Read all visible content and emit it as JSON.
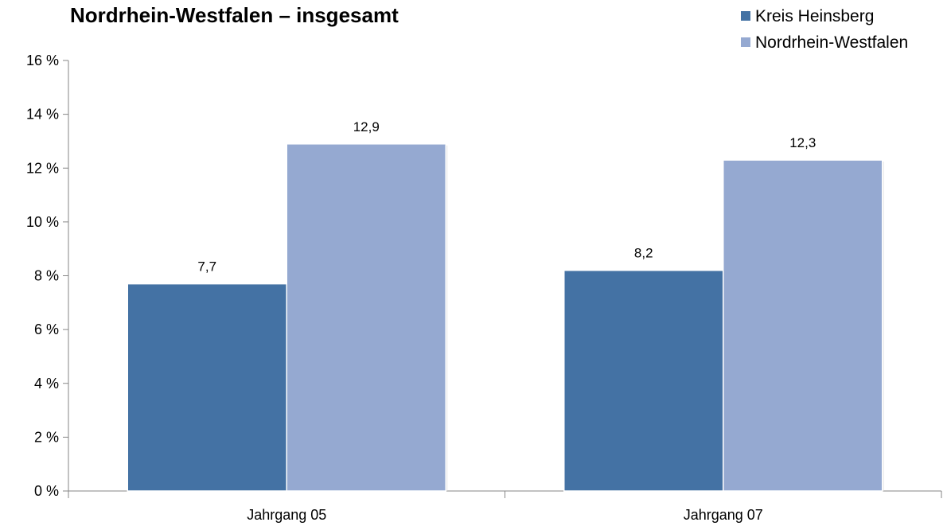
{
  "chart_data": {
    "type": "bar",
    "title": "Nordrhein-Westfalen – insgesamt",
    "categories": [
      "Jahrgang 05",
      "Jahrgang 07"
    ],
    "series": [
      {
        "name": "Kreis Heinsberg",
        "values": [
          7.7,
          8.2
        ],
        "color": "#4472A4",
        "value_labels": [
          "7,7",
          "8,2"
        ]
      },
      {
        "name": "Nordrhein-Westfalen",
        "values": [
          12.9,
          12.3
        ],
        "color": "#95A9D1",
        "value_labels": [
          "12,9",
          "12,3"
        ]
      }
    ],
    "xlabel": "",
    "ylabel": "",
    "ylim": [
      0,
      16
    ],
    "yticks": [
      0,
      2,
      4,
      6,
      8,
      10,
      12,
      14,
      16
    ],
    "ytick_labels": [
      "0 %",
      "2 %",
      "4 %",
      "6 %",
      "8 %",
      "10 %",
      "12 %",
      "14 %",
      "16 %"
    ],
    "grid": false,
    "legend_position": "top-right"
  }
}
